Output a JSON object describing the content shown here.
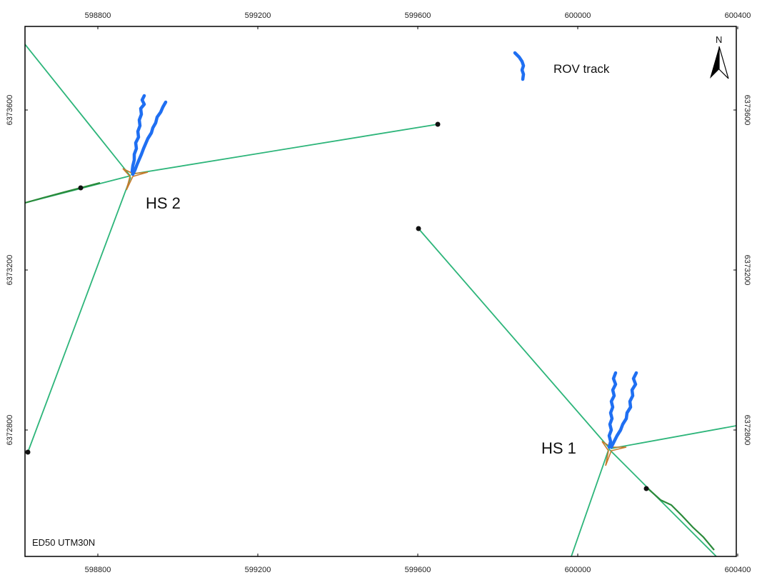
{
  "map": {
    "crs_label": "ED50 UTM30N",
    "x_ticks": [
      "598800",
      "599200",
      "599600",
      "600000",
      "600400"
    ],
    "y_ticks": [
      "6373600",
      "6373200",
      "6372800"
    ],
    "north_label": "N",
    "legend": {
      "rov_label": "ROV track"
    },
    "sites": [
      {
        "label": "HS 2"
      },
      {
        "label": "HS 1"
      }
    ],
    "colors": {
      "mooring_line": "#2db57a",
      "rov_track": "#1f6ff2",
      "anchor_point": "#111111",
      "site_marker": "#c67a2a",
      "frame": "#000000"
    }
  }
}
